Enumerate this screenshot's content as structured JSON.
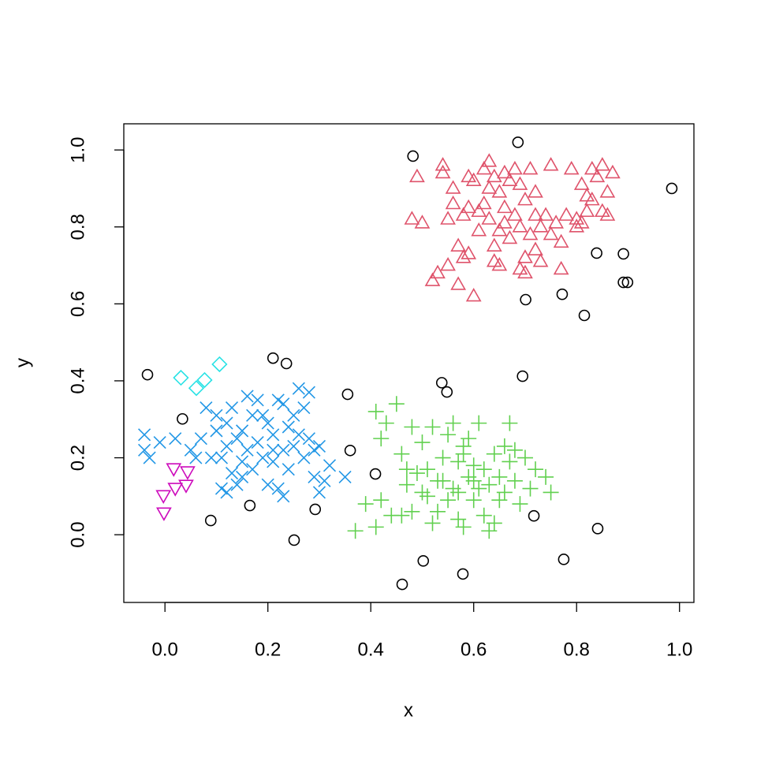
{
  "chart_data": {
    "type": "scatter",
    "x_label": "x",
    "y_label": "y",
    "xlim": [
      -0.08,
      1.028
    ],
    "ylim": [
      -0.176,
      1.068
    ],
    "xticks": [
      {
        "value": 0,
        "label": "0.0"
      },
      0.2,
      0.4,
      0.6,
      0.8,
      {
        "value": 1,
        "label": "1.0"
      }
    ],
    "yticks": [
      {
        "value": 0,
        "label": "0.0"
      },
      0.2,
      0.4,
      0.6,
      0.8,
      {
        "value": 1,
        "label": "1.0"
      }
    ],
    "series": [
      {
        "shape": "circle",
        "color": "#000000",
        "x": [
          -0.034,
          0.034,
          0.089,
          0.165,
          0.21,
          0.236,
          0.251,
          0.292,
          0.355,
          0.36,
          0.409,
          0.461,
          0.482,
          0.502,
          0.538,
          0.548,
          0.579,
          0.686,
          0.695,
          0.701,
          0.717,
          0.772,
          0.775,
          0.815,
          0.839,
          0.841,
          0.891,
          0.891,
          0.899,
          0.985
        ],
        "y": [
          0.416,
          0.301,
          0.037,
          0.076,
          0.459,
          0.445,
          -0.014,
          0.066,
          0.365,
          0.219,
          0.158,
          -0.129,
          0.984,
          -0.068,
          0.395,
          0.371,
          -0.102,
          1.02,
          0.412,
          0.611,
          0.049,
          0.625,
          -0.064,
          0.57,
          0.732,
          0.016,
          0.73,
          0.656,
          0.656,
          0.9
        ]
      },
      {
        "shape": "triangle",
        "color": "#DF536B",
        "x": [
          0.48,
          0.49,
          0.5,
          0.52,
          0.53,
          0.54,
          0.54,
          0.55,
          0.55,
          0.56,
          0.56,
          0.57,
          0.57,
          0.58,
          0.58,
          0.59,
          0.59,
          0.59,
          0.6,
          0.6,
          0.61,
          0.61,
          0.62,
          0.62,
          0.63,
          0.63,
          0.63,
          0.64,
          0.64,
          0.64,
          0.65,
          0.65,
          0.65,
          0.66,
          0.66,
          0.66,
          0.67,
          0.67,
          0.68,
          0.68,
          0.69,
          0.69,
          0.69,
          0.7,
          0.7,
          0.7,
          0.71,
          0.71,
          0.72,
          0.72,
          0.72,
          0.73,
          0.73,
          0.74,
          0.75,
          0.75,
          0.76,
          0.77,
          0.77,
          0.78,
          0.79,
          0.8,
          0.8,
          0.81,
          0.81,
          0.82,
          0.82,
          0.83,
          0.83,
          0.84,
          0.85,
          0.85,
          0.86,
          0.86,
          0.87
        ],
        "y": [
          0.82,
          0.93,
          0.81,
          0.66,
          0.68,
          0.96,
          0.94,
          0.82,
          0.7,
          0.86,
          0.9,
          0.65,
          0.75,
          0.83,
          0.72,
          0.73,
          0.93,
          0.85,
          0.62,
          0.92,
          0.79,
          0.84,
          0.86,
          0.95,
          0.82,
          0.9,
          0.97,
          0.71,
          0.75,
          0.93,
          0.79,
          0.89,
          0.7,
          0.94,
          0.81,
          0.85,
          0.92,
          0.77,
          0.83,
          0.95,
          0.69,
          0.8,
          0.91,
          0.68,
          0.72,
          0.87,
          0.78,
          0.95,
          0.83,
          0.74,
          0.89,
          0.71,
          0.8,
          0.83,
          0.96,
          0.78,
          0.81,
          0.76,
          0.69,
          0.83,
          0.95,
          0.8,
          0.82,
          0.91,
          0.81,
          0.88,
          0.84,
          0.95,
          0.87,
          0.93,
          0.96,
          0.84,
          0.89,
          0.83,
          0.94
        ]
      },
      {
        "shape": "cross",
        "color": "#2297E6",
        "x": [
          -0.04,
          -0.04,
          -0.03,
          -0.01,
          0.02,
          0.05,
          0.06,
          0.07,
          0.08,
          0.09,
          0.1,
          0.1,
          0.11,
          0.11,
          0.12,
          0.12,
          0.12,
          0.13,
          0.13,
          0.14,
          0.14,
          0.15,
          0.15,
          0.16,
          0.16,
          0.17,
          0.17,
          0.18,
          0.18,
          0.19,
          0.19,
          0.2,
          0.2,
          0.21,
          0.21,
          0.22,
          0.22,
          0.23,
          0.23,
          0.24,
          0.24,
          0.25,
          0.25,
          0.26,
          0.26,
          0.27,
          0.27,
          0.28,
          0.28,
          0.29,
          0.29,
          0.3,
          0.3,
          0.31,
          0.32,
          0.35,
          0.21,
          0.15,
          0.23
        ],
        "y": [
          0.26,
          0.22,
          0.2,
          0.24,
          0.25,
          0.22,
          0.2,
          0.25,
          0.33,
          0.2,
          0.27,
          0.31,
          0.12,
          0.2,
          0.29,
          0.23,
          0.11,
          0.33,
          0.16,
          0.25,
          0.13,
          0.27,
          0.19,
          0.36,
          0.22,
          0.31,
          0.17,
          0.35,
          0.24,
          0.2,
          0.31,
          0.29,
          0.13,
          0.26,
          0.19,
          0.35,
          0.12,
          0.22,
          0.34,
          0.28,
          0.17,
          0.31,
          0.23,
          0.26,
          0.38,
          0.2,
          0.33,
          0.25,
          0.37,
          0.22,
          0.15,
          0.23,
          0.11,
          0.14,
          0.18,
          0.15,
          0.22,
          0.15,
          0.1
        ]
      },
      {
        "shape": "plus",
        "color": "#61D04F",
        "x": [
          0.37,
          0.39,
          0.41,
          0.41,
          0.42,
          0.42,
          0.43,
          0.44,
          0.45,
          0.46,
          0.46,
          0.47,
          0.47,
          0.48,
          0.48,
          0.49,
          0.5,
          0.5,
          0.51,
          0.51,
          0.52,
          0.52,
          0.53,
          0.53,
          0.54,
          0.55,
          0.55,
          0.56,
          0.56,
          0.57,
          0.57,
          0.57,
          0.58,
          0.58,
          0.59,
          0.59,
          0.6,
          0.6,
          0.61,
          0.61,
          0.62,
          0.62,
          0.63,
          0.63,
          0.64,
          0.64,
          0.65,
          0.65,
          0.66,
          0.66,
          0.67,
          0.67,
          0.68,
          0.68,
          0.69,
          0.7,
          0.71,
          0.72,
          0.74,
          0.75,
          0.58,
          0.6,
          0.54
        ],
        "y": [
          0.01,
          0.08,
          0.32,
          0.02,
          0.25,
          0.09,
          0.29,
          0.05,
          0.34,
          0.21,
          0.05,
          0.17,
          0.13,
          0.28,
          0.06,
          0.16,
          0.24,
          0.11,
          0.1,
          0.17,
          0.03,
          0.28,
          0.14,
          0.06,
          0.2,
          0.26,
          0.09,
          0.12,
          0.29,
          0.19,
          0.04,
          0.11,
          0.21,
          0.02,
          0.15,
          0.25,
          0.09,
          0.18,
          0.29,
          0.12,
          0.05,
          0.17,
          0.13,
          0.01,
          0.21,
          0.03,
          0.15,
          0.09,
          0.23,
          0.11,
          0.19,
          0.29,
          0.14,
          0.22,
          0.08,
          0.2,
          0.12,
          0.17,
          0.15,
          0.11,
          0.23,
          0.14,
          0.14
        ]
      },
      {
        "shape": "diamond",
        "color": "#28E2E5",
        "x": [
          0.031,
          0.061,
          0.077,
          0.106
        ],
        "y": [
          0.408,
          0.381,
          0.402,
          0.443
        ]
      },
      {
        "shape": "triangle-down",
        "color": "#CD0BBC",
        "x": [
          0.017,
          0.044,
          0.02,
          0.041,
          -0.003,
          -0.002
        ],
        "y": [
          0.172,
          0.164,
          0.121,
          0.129,
          0.102,
          0.057
        ]
      }
    ]
  }
}
